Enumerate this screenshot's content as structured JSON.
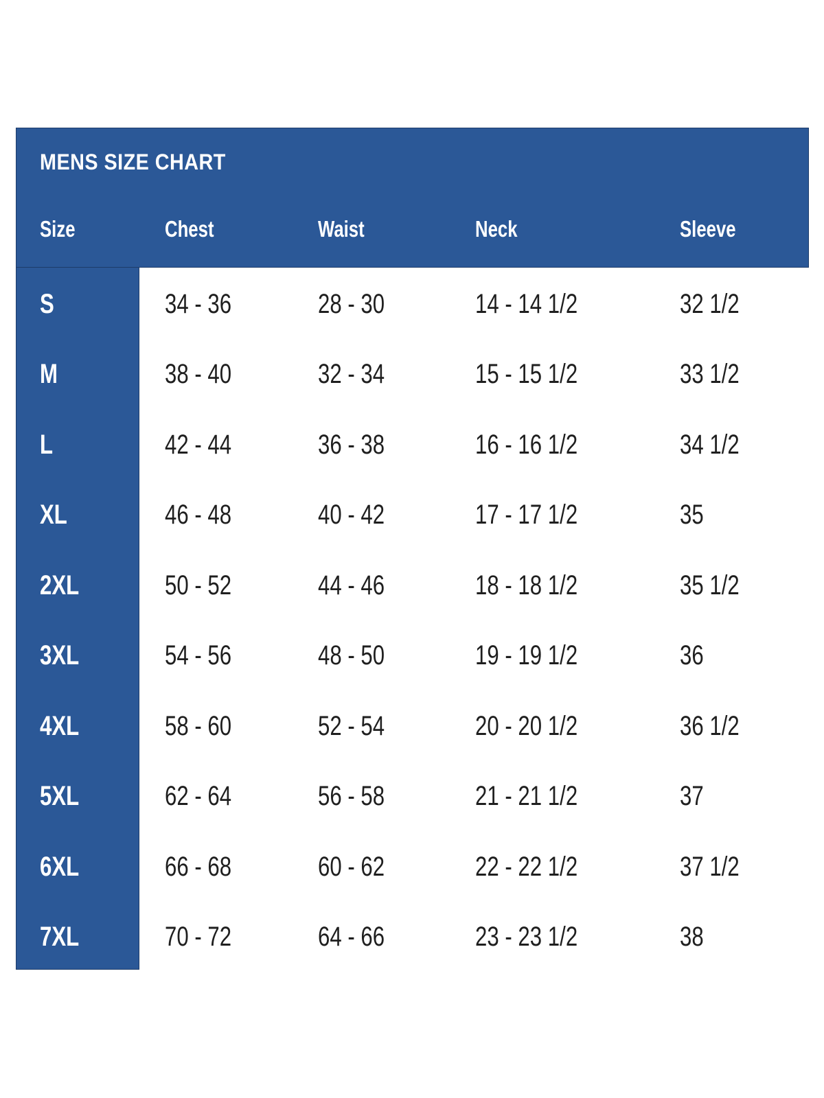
{
  "chart": {
    "title": "MENS SIZE CHART",
    "columns": [
      "Size",
      "Chest",
      "Waist",
      "Neck",
      "Sleeve"
    ],
    "rows": [
      {
        "size": "S",
        "chest": "34 - 36",
        "waist": "28 - 30",
        "neck": "14 - 14 1/2",
        "sleeve": "32 1/2"
      },
      {
        "size": "M",
        "chest": "38 - 40",
        "waist": "32 - 34",
        "neck": "15 - 15 1/2",
        "sleeve": "33 1/2"
      },
      {
        "size": "L",
        "chest": "42 - 44",
        "waist": "36 - 38",
        "neck": "16 - 16 1/2",
        "sleeve": "34 1/2"
      },
      {
        "size": "XL",
        "chest": "46 - 48",
        "waist": "40 - 42",
        "neck": "17 - 17 1/2",
        "sleeve": "35"
      },
      {
        "size": "2XL",
        "chest": "50 - 52",
        "waist": "44 - 46",
        "neck": "18 - 18 1/2",
        "sleeve": "35 1/2"
      },
      {
        "size": "3XL",
        "chest": "54 - 56",
        "waist": "48 - 50",
        "neck": "19 - 19 1/2",
        "sleeve": "36"
      },
      {
        "size": "4XL",
        "chest": "58 - 60",
        "waist": "52 - 54",
        "neck": "20 - 20 1/2",
        "sleeve": "36 1/2"
      },
      {
        "size": "5XL",
        "chest": "62 - 64",
        "waist": "56 - 58",
        "neck": "21 - 21 1/2",
        "sleeve": "37"
      },
      {
        "size": "6XL",
        "chest": "66 - 68",
        "waist": "60 - 62",
        "neck": "22 - 22 1/2",
        "sleeve": "37 1/2"
      },
      {
        "size": "7XL",
        "chest": "70 - 72",
        "waist": "64 - 66",
        "neck": "23 - 23 1/2",
        "sleeve": "38"
      }
    ]
  },
  "colors": {
    "panel_blue": "#2b5897",
    "panel_edge": "#1d3b69",
    "header_text": "#ffffff",
    "data_text": "#1f1f1f"
  }
}
